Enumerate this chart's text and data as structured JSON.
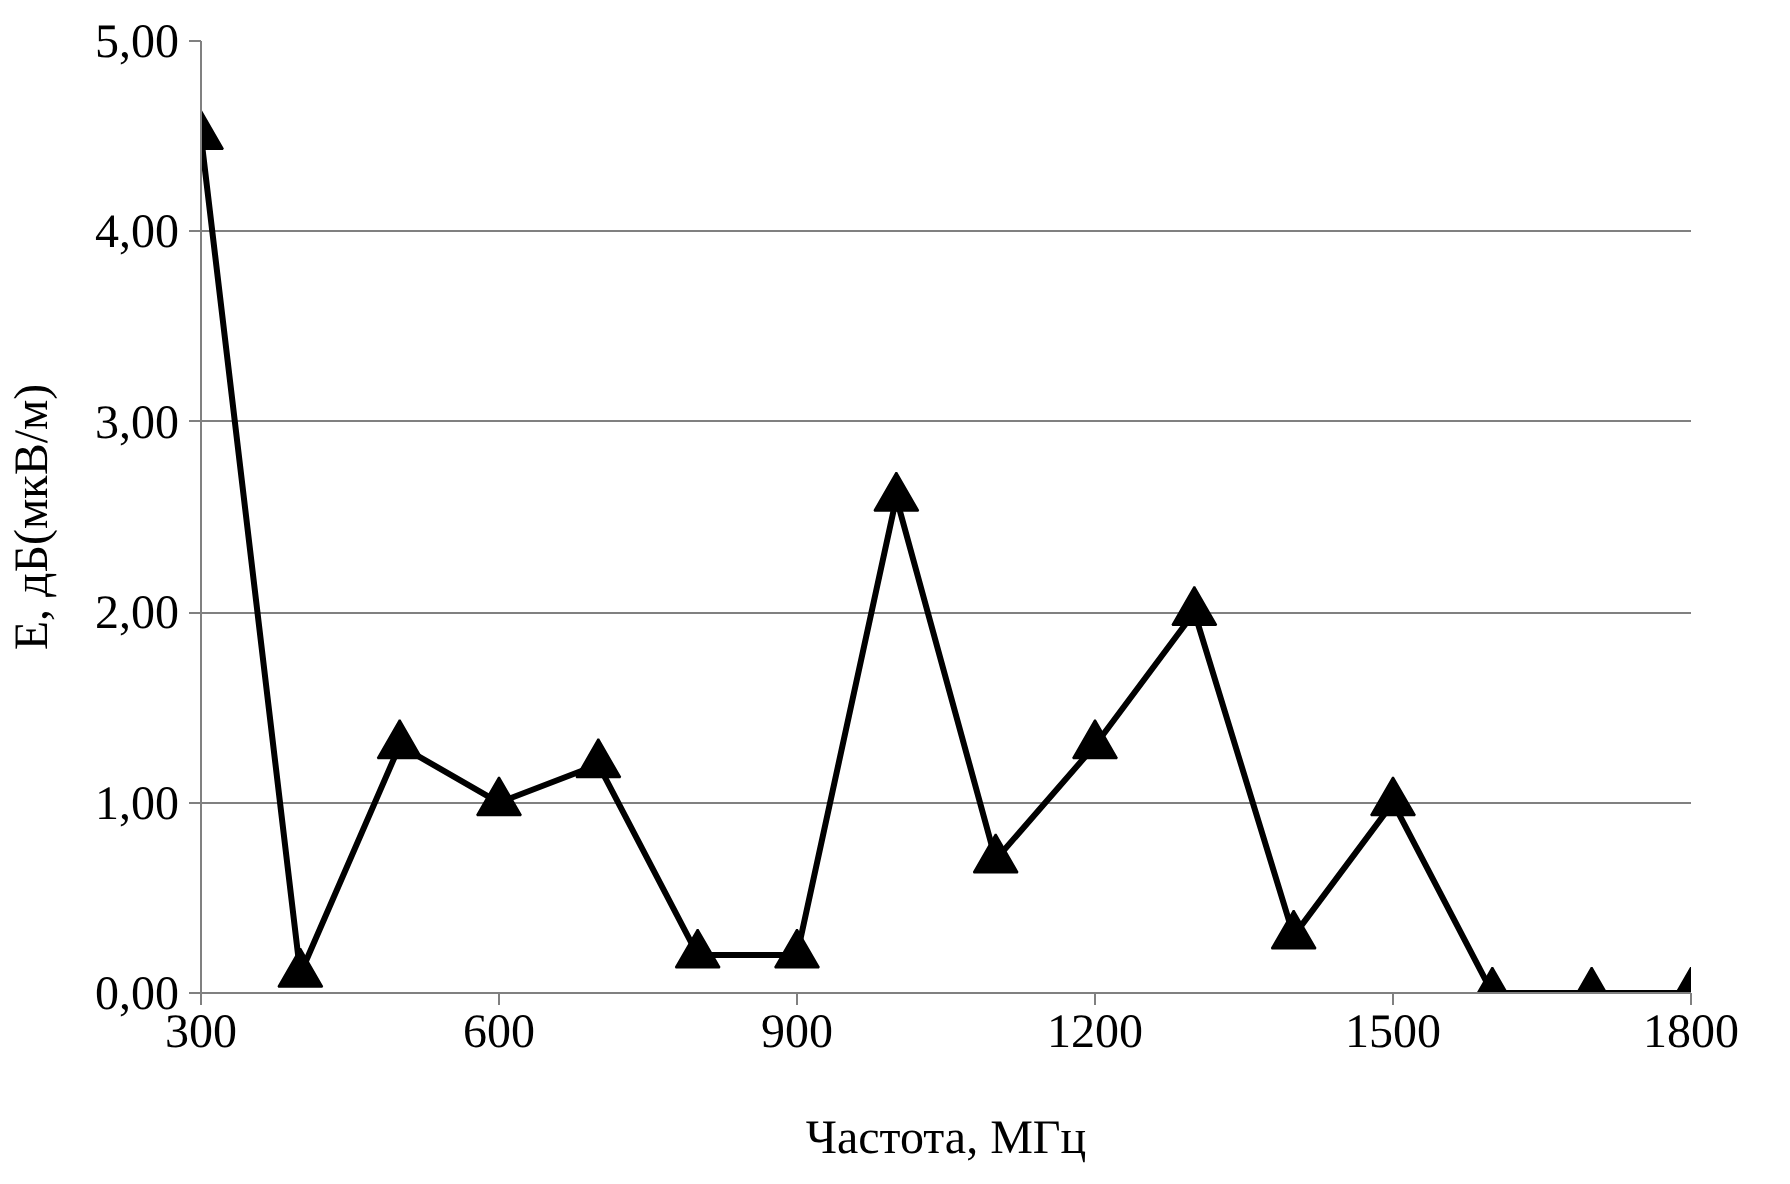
{
  "chart_data": {
    "type": "line",
    "xlabel": "Частота, МГц",
    "ylabel": "E, дБ(мкВ/м)",
    "x": [
      300,
      400,
      500,
      600,
      700,
      800,
      900,
      1000,
      1100,
      1200,
      1300,
      1400,
      1500,
      1600,
      1700,
      1800
    ],
    "series": [
      {
        "color": "#000000",
        "values": [
          4.5,
          0.1,
          1.3,
          1.0,
          1.2,
          0.2,
          0.2,
          2.6,
          0.7,
          1.3,
          2.0,
          0.3,
          1.0,
          0.0,
          0.0,
          0.0
        ]
      }
    ],
    "xlim": [
      300,
      1800
    ],
    "xticks": [
      300,
      600,
      900,
      1200,
      1500,
      1800
    ],
    "ylim": [
      0,
      5
    ],
    "yticks": [
      {
        "value": 0,
        "label": "0,00"
      },
      {
        "value": 1,
        "label": "1,00"
      },
      {
        "value": 2,
        "label": "2,00"
      },
      {
        "value": 3,
        "label": "3,00"
      },
      {
        "value": 4,
        "label": "4,00"
      },
      {
        "value": 5,
        "label": "5,00"
      }
    ],
    "grid": "y",
    "marker": "triangle",
    "line_style": "solid"
  }
}
